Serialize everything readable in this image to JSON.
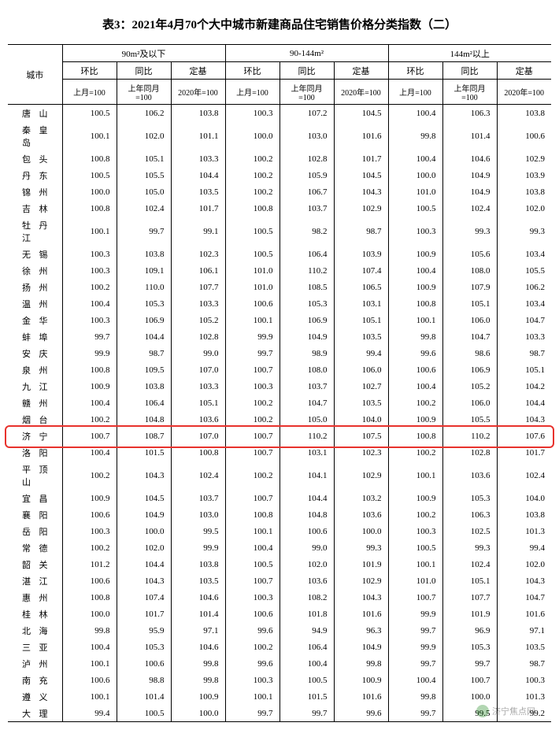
{
  "title": "表3：2021年4月70个大中城市新建商品住宅销售价格分类指数（二）",
  "city_header": "城市",
  "groups": [
    {
      "label_html": "90m²及以下"
    },
    {
      "label_html": "90-144m²"
    },
    {
      "label_html": "144m²以上"
    }
  ],
  "sub1": [
    "环比",
    "同比",
    "定基"
  ],
  "sub2": [
    "上月=100",
    "上年同月=100",
    "2020年=100"
  ],
  "highlight_city": "济宁",
  "watermark": "济宁焦点网",
  "rows": [
    {
      "city": "唐山",
      "v": [
        100.5,
        106.2,
        103.8,
        100.3,
        107.2,
        104.5,
        100.4,
        106.3,
        103.8
      ]
    },
    {
      "city": "秦皇岛",
      "v": [
        100.1,
        102.0,
        101.1,
        100.0,
        103.0,
        101.6,
        99.8,
        101.4,
        100.6
      ]
    },
    {
      "city": "包头",
      "v": [
        100.8,
        105.1,
        103.3,
        100.2,
        102.8,
        101.7,
        100.4,
        104.6,
        102.9
      ]
    },
    {
      "city": "丹东",
      "v": [
        100.5,
        105.5,
        104.4,
        100.2,
        105.9,
        104.5,
        100.0,
        104.9,
        103.9
      ]
    },
    {
      "city": "锦州",
      "v": [
        100.0,
        105.0,
        103.5,
        100.2,
        106.7,
        104.3,
        101.0,
        104.9,
        103.8
      ]
    },
    {
      "city": "吉林",
      "v": [
        100.8,
        102.4,
        101.7,
        100.8,
        103.7,
        102.9,
        100.5,
        102.4,
        102.0
      ]
    },
    {
      "city": "牡丹江",
      "v": [
        100.1,
        99.7,
        99.1,
        100.5,
        98.2,
        98.7,
        100.3,
        99.3,
        99.3
      ]
    },
    {
      "city": "无锡",
      "v": [
        100.3,
        103.8,
        102.3,
        100.5,
        106.4,
        103.9,
        100.9,
        105.6,
        103.4
      ]
    },
    {
      "city": "徐州",
      "v": [
        100.3,
        109.1,
        106.1,
        101.0,
        110.2,
        107.4,
        100.4,
        108.0,
        105.5
      ]
    },
    {
      "city": "扬州",
      "v": [
        100.2,
        110.0,
        107.7,
        101.0,
        108.5,
        106.5,
        100.9,
        107.9,
        106.2
      ]
    },
    {
      "city": "温州",
      "v": [
        100.4,
        105.3,
        103.3,
        100.6,
        105.3,
        103.1,
        100.8,
        105.1,
        103.4
      ]
    },
    {
      "city": "金华",
      "v": [
        100.3,
        106.9,
        105.2,
        100.1,
        106.9,
        105.1,
        100.1,
        106.0,
        104.7
      ]
    },
    {
      "city": "蚌埠",
      "v": [
        99.7,
        104.4,
        102.8,
        99.9,
        104.9,
        103.5,
        99.8,
        104.7,
        103.3
      ]
    },
    {
      "city": "安庆",
      "v": [
        99.9,
        98.7,
        99.0,
        99.7,
        98.9,
        99.4,
        99.6,
        98.6,
        98.7
      ]
    },
    {
      "city": "泉州",
      "v": [
        100.8,
        109.5,
        107.0,
        100.7,
        108.0,
        106.0,
        100.6,
        106.9,
        105.1
      ]
    },
    {
      "city": "九江",
      "v": [
        100.9,
        103.8,
        103.3,
        100.3,
        103.7,
        102.7,
        100.4,
        105.2,
        104.2
      ]
    },
    {
      "city": "赣州",
      "v": [
        100.4,
        106.4,
        105.1,
        100.2,
        104.7,
        103.5,
        100.2,
        106.0,
        104.4
      ]
    },
    {
      "city": "烟台",
      "v": [
        100.2,
        104.8,
        103.6,
        100.2,
        105.0,
        104.0,
        100.9,
        105.5,
        104.3
      ]
    },
    {
      "city": "济宁",
      "v": [
        100.7,
        108.7,
        107.0,
        100.7,
        110.2,
        107.5,
        100.8,
        110.2,
        107.6
      ]
    },
    {
      "city": "洛阳",
      "v": [
        100.4,
        101.5,
        100.8,
        100.7,
        103.1,
        102.3,
        100.2,
        102.8,
        101.7
      ]
    },
    {
      "city": "平顶山",
      "v": [
        100.2,
        104.3,
        102.4,
        100.2,
        104.1,
        102.9,
        100.1,
        103.6,
        102.4
      ]
    },
    {
      "city": "宜昌",
      "v": [
        100.9,
        104.5,
        103.7,
        100.7,
        104.4,
        103.2,
        100.9,
        105.3,
        104.0
      ]
    },
    {
      "city": "襄阳",
      "v": [
        100.6,
        104.9,
        103.0,
        100.8,
        104.8,
        103.6,
        100.2,
        106.3,
        103.8
      ]
    },
    {
      "city": "岳阳",
      "v": [
        100.3,
        100.0,
        99.5,
        100.1,
        100.6,
        100.0,
        100.3,
        102.5,
        101.3
      ]
    },
    {
      "city": "常德",
      "v": [
        100.2,
        102.0,
        99.9,
        100.4,
        99.0,
        99.3,
        100.5,
        99.3,
        99.4
      ]
    },
    {
      "city": "韶关",
      "v": [
        101.2,
        104.4,
        103.8,
        100.5,
        102.0,
        101.9,
        100.1,
        102.4,
        102.0
      ]
    },
    {
      "city": "湛江",
      "v": [
        100.6,
        104.3,
        103.5,
        100.7,
        103.6,
        102.9,
        101.0,
        105.1,
        104.3
      ]
    },
    {
      "city": "惠州",
      "v": [
        100.8,
        107.4,
        104.6,
        100.3,
        108.2,
        104.3,
        100.7,
        107.7,
        104.7
      ]
    },
    {
      "city": "桂林",
      "v": [
        100.0,
        101.7,
        101.4,
        100.6,
        101.8,
        101.6,
        99.9,
        101.9,
        101.6
      ]
    },
    {
      "city": "北海",
      "v": [
        99.8,
        95.9,
        97.1,
        99.6,
        94.9,
        96.3,
        99.7,
        96.9,
        97.1
      ]
    },
    {
      "city": "三亚",
      "v": [
        100.4,
        105.3,
        104.6,
        100.2,
        106.4,
        104.9,
        99.9,
        105.3,
        103.5
      ]
    },
    {
      "city": "泸州",
      "v": [
        100.1,
        100.6,
        99.8,
        99.6,
        100.4,
        99.8,
        99.7,
        99.7,
        98.7
      ]
    },
    {
      "city": "南充",
      "v": [
        100.6,
        98.8,
        99.8,
        100.3,
        100.5,
        100.9,
        100.4,
        100.7,
        100.3
      ]
    },
    {
      "city": "遵义",
      "v": [
        100.1,
        101.4,
        100.9,
        100.1,
        101.5,
        101.6,
        99.8,
        100.0,
        101.3
      ]
    },
    {
      "city": "大理",
      "v": [
        99.4,
        100.5,
        100.0,
        99.7,
        99.7,
        99.6,
        99.7,
        99.5,
        99.2
      ]
    }
  ]
}
